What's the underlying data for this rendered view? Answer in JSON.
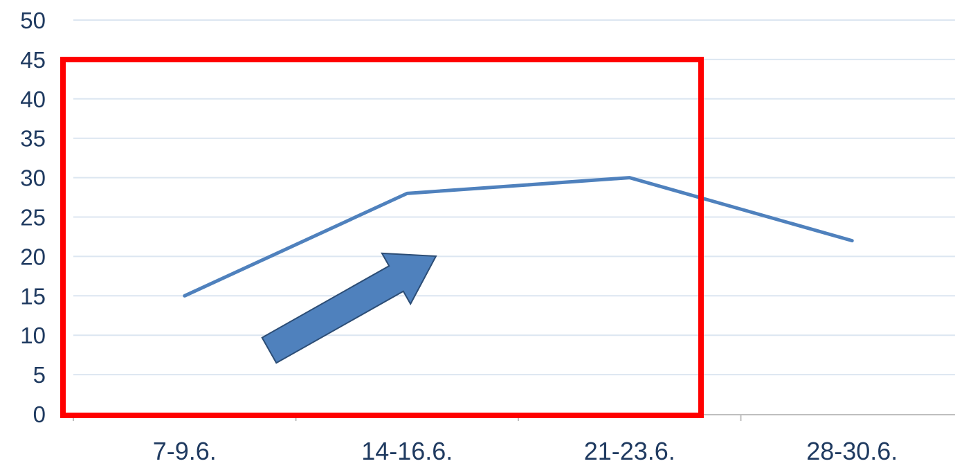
{
  "chart_data": {
    "type": "line",
    "title": "",
    "xlabel": "",
    "ylabel": "",
    "categories": [
      "7-9.6.",
      "14-16.6.",
      "21-23.6.",
      "28-30.6."
    ],
    "series": [
      {
        "values": [
          15,
          28,
          30,
          22
        ]
      }
    ],
    "ylim": [
      0,
      50
    ],
    "yticks": [
      "0",
      "5",
      "10",
      "15",
      "20",
      "25",
      "30",
      "35",
      "40",
      "45",
      "50"
    ],
    "grid": true,
    "legend": "none",
    "annotations": [
      {
        "kind": "highlight-rectangle",
        "spans_categories": [
          "7-9.6.",
          "14-16.6.",
          "21-23.6."
        ]
      },
      {
        "kind": "arrow",
        "direction": "up-right"
      }
    ]
  },
  "colors": {
    "line": "#4f81bd",
    "gridline": "#dce6f1",
    "axis": "#bfbfbf",
    "tick_text": "#1f3a60",
    "highlight_box": "#ff0000",
    "arrow_fill": "#4f81bd",
    "arrow_stroke": "#2c4d75"
  }
}
